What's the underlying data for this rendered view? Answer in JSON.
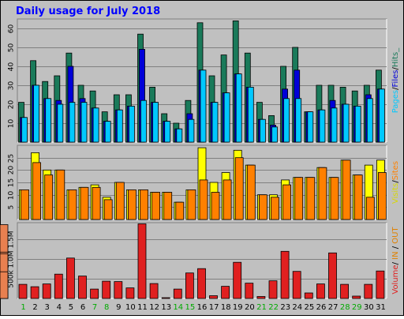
{
  "chart_data": {
    "type": "bar",
    "title": "Daily usage for July 2018",
    "days": [
      "1",
      "2",
      "3",
      "4",
      "5",
      "6",
      "7",
      "8",
      "9",
      "10",
      "11",
      "12",
      "13",
      "14",
      "15",
      "16",
      "17",
      "18",
      "19",
      "20",
      "21",
      "22",
      "23",
      "24",
      "25",
      "26",
      "27",
      "28",
      "29",
      "30",
      "31"
    ],
    "weekend_days": [
      "1",
      "7",
      "8",
      "14",
      "15",
      "21",
      "22",
      "28",
      "29"
    ],
    "panels": [
      {
        "id": "hits",
        "ylim": [
          0,
          65
        ],
        "yticks": [
          10,
          20,
          30,
          40,
          50,
          60
        ],
        "series_label": [
          "Pages",
          "/",
          "Files",
          "/",
          "Hits",
          "_"
        ],
        "series": [
          {
            "name": "Hits",
            "color": "#1a7a5a",
            "values": [
              21,
              43,
              32,
              35,
              47,
              30,
              27,
              16,
              25,
              25,
              57,
              29,
              15,
              10,
              22,
              63,
              35,
              46,
              64,
              47,
              21,
              14,
              40,
              50,
              16,
              30,
              30,
              29,
              27,
              30,
              38
            ]
          },
          {
            "name": "Files",
            "color": "#0000d8",
            "values": [
              13,
              30,
              23,
              22,
              40,
              23,
              18,
              11,
              17,
              19,
              49,
              21,
              11,
              7,
              15,
              38,
              21,
              26,
              36,
              29,
              12,
              9,
              28,
              38,
              16,
              17,
              22,
              20,
              19,
              25,
              28
            ]
          },
          {
            "name": "Pages",
            "color": "#00c8ff",
            "values": [
              13,
              30,
              23,
              20,
              21,
              21,
              18,
              11,
              17,
              19,
              22,
              21,
              11,
              7,
              12,
              38,
              21,
              26,
              36,
              29,
              12,
              8,
              23,
              23,
              16,
              17,
              18,
              20,
              19,
              23,
              28
            ]
          }
        ]
      },
      {
        "id": "visits",
        "ylim": [
          0,
          30
        ],
        "yticks": [
          5,
          10,
          15,
          20,
          25
        ],
        "series_label": [
          "Visits",
          "/",
          "Sites"
        ],
        "series": [
          {
            "name": "Visits",
            "color": "#ffff00",
            "values": [
              12,
              27,
              20,
              20,
              12,
              13,
              14,
              9,
              15,
              12,
              12,
              11,
              11,
              7,
              12,
              29,
              15,
              19,
              28,
              22,
              10,
              10,
              16,
              17,
              17,
              21,
              17,
              24,
              18,
              22,
              24
            ]
          },
          {
            "name": "Sites",
            "color": "#ff8000",
            "values": [
              12,
              23,
              18,
              20,
              12,
              13,
              13,
              8,
              15,
              12,
              12,
              11,
              11,
              7,
              12,
              16,
              11,
              16,
              25,
              22,
              10,
              9,
              14,
              17,
              17,
              21,
              17,
              24,
              18,
              9,
              19
            ]
          }
        ]
      },
      {
        "id": "volume",
        "ylim": [
          0,
          1930000
        ],
        "yticks": [
          500000,
          1000000,
          1500000
        ],
        "ytick_labels": [
          "500k",
          "1.0M",
          "1.5M"
        ],
        "series_label": [
          "Volume",
          "/",
          "IN",
          "/",
          "OUT"
        ],
        "series": [
          {
            "name": "Volume",
            "color": "#e02020",
            "values": [
              360000,
              300000,
              370000,
              620000,
              1030000,
              570000,
              240000,
              440000,
              430000,
              270000,
              1900000,
              380000,
              20000,
              240000,
              650000,
              760000,
              70000,
              310000,
              920000,
              390000,
              50000,
              450000,
              1200000,
              690000,
              140000,
              370000,
              1160000,
              360000,
              60000,
              360000,
              700000
            ]
          },
          {
            "name": "IN",
            "color": "#e08000",
            "values": []
          },
          {
            "name": "OUT",
            "color": "#e88050",
            "values": [
              340000,
              280000,
              360000,
              600000,
              1000000,
              550000,
              230000,
              420000,
              410000,
              260000,
              1880000,
              370000,
              18000,
              230000,
              630000,
              740000,
              65000,
              300000,
              900000,
              370000,
              45000,
              430000,
              1180000,
              670000,
              130000,
              360000,
              1140000,
              340000,
              55000,
              350000,
              680000
            ]
          }
        ]
      }
    ],
    "colors": {
      "background": "#c0c0c0",
      "plot_bg": "#c0c0c0",
      "title": "#0000ff",
      "weekday_label": "#000000",
      "weekend_label": "#00aa00",
      "in_color": "#e08000",
      "out_color": "#f8a060",
      "volume_color": "#e02020",
      "visits_color": "#ffff00",
      "sites_color": "#ff8000",
      "pages_color": "#00c8ff",
      "files_color": "#0000d8",
      "hits_color": "#1a7a5a"
    }
  }
}
